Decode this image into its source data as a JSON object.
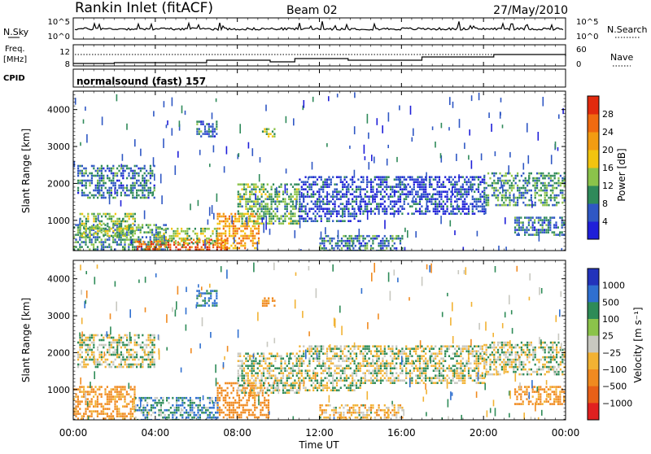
{
  "header": {
    "station": "Rankin Inlet (fitACF)",
    "beam": "Beam 02",
    "date": "27/May/2010"
  },
  "noise_panel": {
    "left_label": "N.Sky",
    "left_ticks": [
      "10^5",
      "10^0"
    ],
    "right_ticks": [
      "10^5",
      "10^0"
    ],
    "right_label": "N.Search"
  },
  "freq_panel": {
    "left_label_line1": "Freq.",
    "left_label_line2": "[MHz]",
    "left_ticks": [
      "12",
      "8"
    ],
    "right_ticks": [
      "60",
      "0"
    ],
    "right_label": "Nave"
  },
  "cpid_panel": {
    "label": "CPID",
    "text": "normalsound (fast) 157"
  },
  "x_axis": {
    "label": "Time UT",
    "ticks": [
      "00:00",
      "04:00",
      "08:00",
      "12:00",
      "16:00",
      "20:00",
      "00:00"
    ]
  },
  "y_axis": {
    "label": "Slant Range [km]",
    "ticks": [
      "1000",
      "2000",
      "3000",
      "4000"
    ]
  },
  "power_colorbar": {
    "label": "Power [dB]",
    "ticks": [
      "4",
      "8",
      "12",
      "16",
      "20",
      "24",
      "28"
    ]
  },
  "velocity_colorbar": {
    "label": "Velocity [m s⁻¹]",
    "ticks": [
      "1000",
      "500",
      "100",
      "25",
      "−25",
      "−100",
      "−500",
      "−1000"
    ]
  },
  "chart_data": [
    {
      "type": "heatmap",
      "title": "Power",
      "xlabel": "Time UT",
      "ylabel": "Slant Range [km]",
      "xlim": [
        0,
        24
      ],
      "ylim": [
        180,
        4500
      ],
      "colorbar_range": [
        0,
        30
      ],
      "colorbar_label": "Power [dB]",
      "regions": [
        {
          "t0": 0.0,
          "t1": 4.5,
          "r0": 180,
          "r1": 900,
          "power": 10
        },
        {
          "t0": 0.3,
          "t1": 3.0,
          "r0": 600,
          "r1": 1200,
          "power": 14
        },
        {
          "t0": 0.2,
          "t1": 4.0,
          "r0": 1600,
          "r1": 2500,
          "power": 8
        },
        {
          "t0": 3.0,
          "t1": 4.5,
          "r0": 180,
          "r1": 450,
          "power": 26
        },
        {
          "t0": 4.5,
          "t1": 7.5,
          "r0": 180,
          "r1": 500,
          "power": 26
        },
        {
          "t0": 4.0,
          "t1": 7.0,
          "r0": 400,
          "r1": 800,
          "power": 14
        },
        {
          "t0": 7.0,
          "t1": 9.0,
          "r0": 250,
          "r1": 1200,
          "power": 22
        },
        {
          "t0": 8.0,
          "t1": 11.0,
          "r0": 900,
          "r1": 2000,
          "power": 12
        },
        {
          "t0": 6.0,
          "t1": 7.0,
          "r0": 3300,
          "r1": 3700,
          "power": 8
        },
        {
          "t0": 9.2,
          "t1": 9.8,
          "r0": 3300,
          "r1": 3500,
          "power": 14
        },
        {
          "t0": 11.0,
          "t1": 14.0,
          "r0": 1000,
          "r1": 2200,
          "power": 5
        },
        {
          "t0": 12.0,
          "t1": 16.0,
          "r0": 180,
          "r1": 600,
          "power": 8
        },
        {
          "t0": 14.0,
          "t1": 20.0,
          "r0": 1200,
          "r1": 2200,
          "power": 5
        },
        {
          "t0": 20.0,
          "t1": 24.0,
          "r0": 1400,
          "r1": 2300,
          "power": 10
        },
        {
          "t0": 21.5,
          "t1": 24.0,
          "r0": 600,
          "r1": 1100,
          "power": 8
        }
      ]
    },
    {
      "type": "heatmap",
      "title": "Velocity",
      "xlabel": "Time UT",
      "ylabel": "Slant Range [km]",
      "xlim": [
        0,
        24
      ],
      "ylim": [
        180,
        4500
      ],
      "colorbar_range": [
        -1000,
        1000
      ],
      "colorbar_label": "Velocity [m s⁻¹]",
      "regions": [
        {
          "t0": 0.0,
          "t1": 3.0,
          "r0": 180,
          "r1": 1100,
          "velocity": -150
        },
        {
          "t0": 0.2,
          "t1": 4.0,
          "r0": 1600,
          "r1": 2500,
          "velocity": 0
        },
        {
          "t0": 3.0,
          "t1": 7.0,
          "r0": 180,
          "r1": 800,
          "velocity": 80
        },
        {
          "t0": 7.0,
          "t1": 9.5,
          "r0": 250,
          "r1": 1200,
          "velocity": -200
        },
        {
          "t0": 8.0,
          "t1": 11.0,
          "r0": 900,
          "r1": 2000,
          "velocity": 0
        },
        {
          "t0": 6.0,
          "t1": 7.0,
          "r0": 3300,
          "r1": 3700,
          "velocity": 120
        },
        {
          "t0": 9.2,
          "t1": 9.8,
          "r0": 3300,
          "r1": 3500,
          "velocity": -150
        },
        {
          "t0": 11.0,
          "t1": 14.0,
          "r0": 1000,
          "r1": 2200,
          "velocity": 0
        },
        {
          "t0": 12.0,
          "t1": 16.0,
          "r0": 180,
          "r1": 600,
          "velocity": -60
        },
        {
          "t0": 14.0,
          "t1": 20.0,
          "r0": 1200,
          "r1": 2200,
          "velocity": 0
        },
        {
          "t0": 20.0,
          "t1": 24.0,
          "r0": 1400,
          "r1": 2300,
          "velocity": 0
        },
        {
          "t0": 21.5,
          "t1": 24.0,
          "r0": 600,
          "r1": 1100,
          "velocity": -150
        }
      ]
    }
  ]
}
